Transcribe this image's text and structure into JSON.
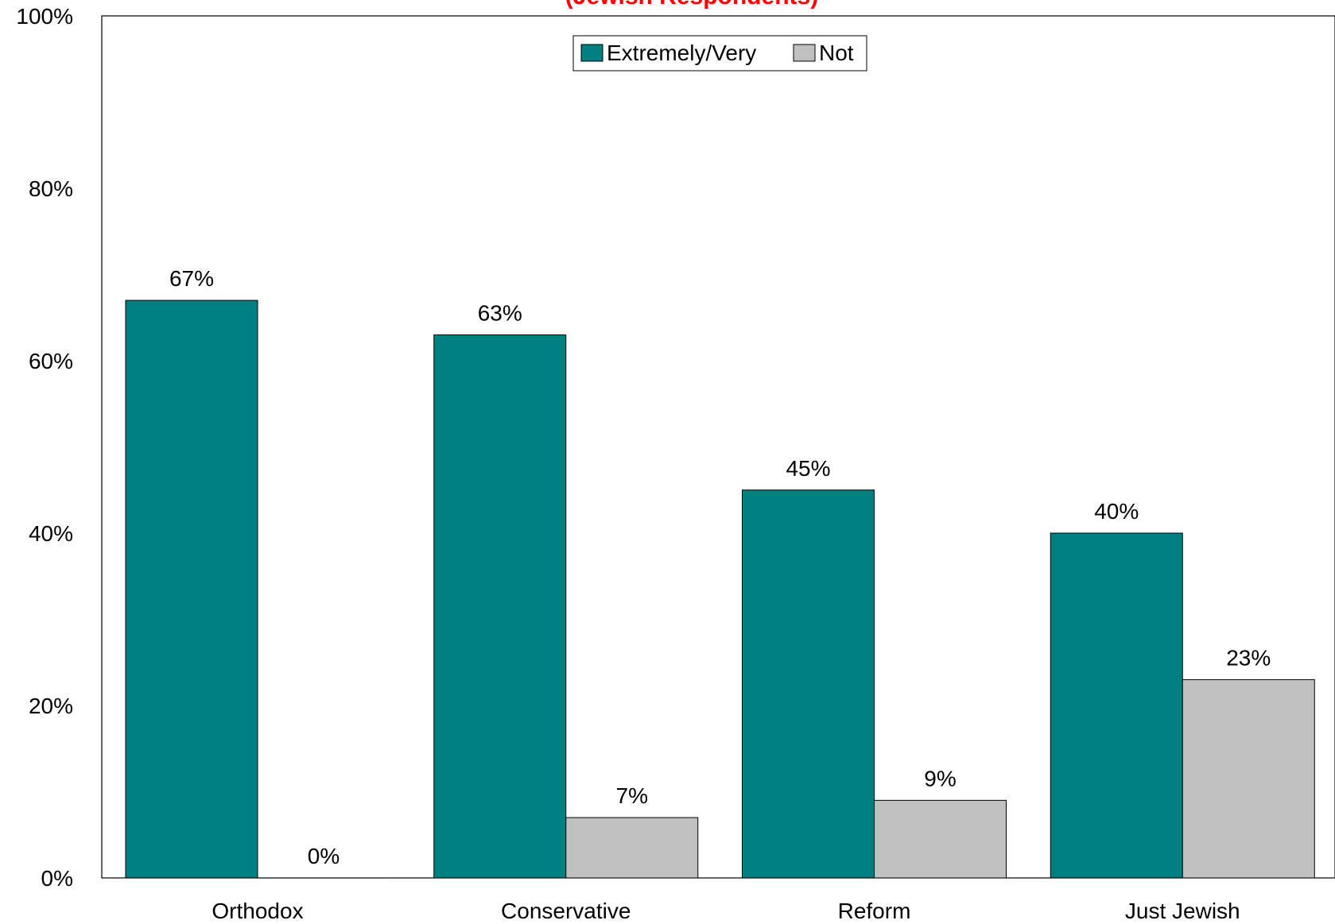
{
  "chart_data": {
    "type": "bar",
    "title": "(Jewish Respondents)",
    "title_color": "#ff0000",
    "categories": [
      "Orthodox",
      "Conservative",
      "Reform",
      "Just Jewish"
    ],
    "series": [
      {
        "name": "Extremely/Very",
        "color": "#008080",
        "values": [
          67,
          63,
          45,
          40
        ],
        "labels": [
          "67%",
          "63%",
          "45%",
          "40%"
        ]
      },
      {
        "name": "Not",
        "color": "#c0c0c0",
        "values": [
          0,
          7,
          9,
          23
        ],
        "labels": [
          "0%",
          "7%",
          "9%",
          "23%"
        ]
      }
    ],
    "ylim": [
      0,
      100
    ],
    "yticks": [
      0,
      20,
      40,
      60,
      80,
      100
    ],
    "ytick_labels": [
      "0%",
      "20%",
      "40%",
      "60%",
      "80%",
      "100%"
    ],
    "xlabel": "",
    "ylabel": "",
    "grid": false,
    "legend_position": "top-center"
  }
}
